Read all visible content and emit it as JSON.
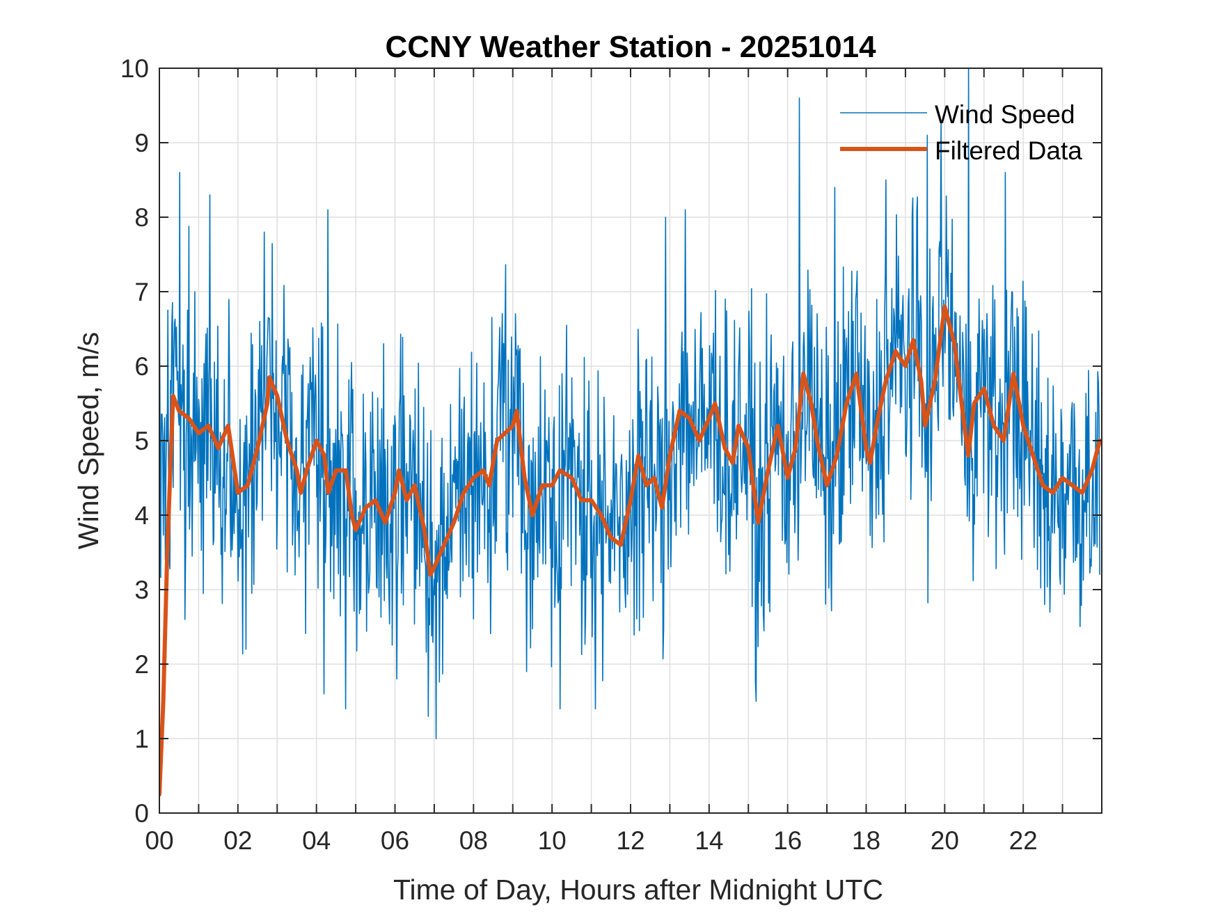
{
  "chart_data": {
    "type": "line",
    "title": "CCNY Weather Station - 20251014",
    "xlabel": "Time of Day, Hours after Midnight UTC",
    "ylabel": "Wind Speed, m/s",
    "xlim": [
      0,
      24
    ],
    "ylim": [
      0,
      10
    ],
    "grid": true,
    "legend_position": "top-right",
    "x_ticks": [
      0,
      2,
      4,
      6,
      8,
      10,
      12,
      14,
      16,
      18,
      20,
      22
    ],
    "x_tick_labels": [
      "00",
      "02",
      "04",
      "06",
      "08",
      "10",
      "12",
      "14",
      "16",
      "18",
      "20",
      "22"
    ],
    "x_minor_grid_step_hours": 1,
    "y_ticks": [
      0,
      1,
      2,
      3,
      4,
      5,
      6,
      7,
      8,
      9,
      10
    ],
    "y_tick_labels": [
      "0",
      "1",
      "2",
      "3",
      "4",
      "5",
      "6",
      "7",
      "8",
      "9",
      "10"
    ],
    "series": [
      {
        "name": "Wind Speed",
        "color": "#0072BD",
        "note": "high-frequency 1-minute samples; values approximated as filtered value plus noise with notable spikes listed",
        "sample_interval_hours": 0.0167,
        "noise_amplitude": 1.6,
        "notable_points": [
          {
            "x": 0.0,
            "y": 7.2
          },
          {
            "x": 0.52,
            "y": 8.6
          },
          {
            "x": 0.65,
            "y": 2.6
          },
          {
            "x": 1.28,
            "y": 8.3
          },
          {
            "x": 2.2,
            "y": 2.2
          },
          {
            "x": 2.68,
            "y": 7.8
          },
          {
            "x": 4.3,
            "y": 8.1
          },
          {
            "x": 4.2,
            "y": 1.6
          },
          {
            "x": 4.75,
            "y": 1.4
          },
          {
            "x": 6.05,
            "y": 1.8
          },
          {
            "x": 6.85,
            "y": 1.3
          },
          {
            "x": 7.05,
            "y": 1.0
          },
          {
            "x": 9.35,
            "y": 1.9
          },
          {
            "x": 10.2,
            "y": 1.4
          },
          {
            "x": 11.1,
            "y": 1.4
          },
          {
            "x": 12.9,
            "y": 8.0
          },
          {
            "x": 13.4,
            "y": 8.1
          },
          {
            "x": 15.2,
            "y": 1.5
          },
          {
            "x": 16.3,
            "y": 9.6
          },
          {
            "x": 17.2,
            "y": 8.4
          },
          {
            "x": 18.5,
            "y": 8.5
          },
          {
            "x": 19.55,
            "y": 9.1
          },
          {
            "x": 19.9,
            "y": 9.3
          },
          {
            "x": 20.6,
            "y": 10.0
          },
          {
            "x": 21.55,
            "y": 8.6
          },
          {
            "x": 22.55,
            "y": 2.8
          },
          {
            "x": 23.95,
            "y": 3.2
          }
        ]
      },
      {
        "name": "Filtered Data",
        "color": "#D95319",
        "x": [
          0,
          0.1,
          0.2,
          0.35,
          0.5,
          0.75,
          1,
          1.25,
          1.5,
          1.75,
          2,
          2.25,
          2.5,
          2.75,
          2.8,
          3,
          3.25,
          3.5,
          3.6,
          3.75,
          4,
          4.2,
          4.3,
          4.5,
          4.75,
          4.9,
          5,
          5.25,
          5.5,
          5.75,
          6,
          6.1,
          6.3,
          6.5,
          6.75,
          6.9,
          7,
          7.25,
          7.5,
          7.75,
          8,
          8.25,
          8.4,
          8.6,
          8.8,
          9,
          9.1,
          9.3,
          9.5,
          9.75,
          10,
          10.2,
          10.5,
          10.75,
          11,
          11.25,
          11.5,
          11.75,
          12,
          12.2,
          12.4,
          12.6,
          12.8,
          13,
          13.25,
          13.5,
          13.75,
          14,
          14.15,
          14.4,
          14.6,
          14.75,
          15,
          15.25,
          15.5,
          15.75,
          16,
          16.2,
          16.4,
          16.6,
          16.75,
          17,
          17.25,
          17.5,
          17.75,
          18,
          18.1,
          18.3,
          18.5,
          18.75,
          19,
          19.2,
          19.4,
          19.5,
          19.75,
          20,
          20.25,
          20.5,
          20.6,
          20.75,
          21,
          21.25,
          21.5,
          21.75,
          22,
          22.25,
          22.5,
          22.75,
          23,
          23.25,
          23.5,
          23.75,
          23.95
        ],
        "y": [
          0.25,
          1.5,
          3.5,
          5.6,
          5.4,
          5.3,
          5.1,
          5.2,
          4.9,
          5.2,
          4.3,
          4.4,
          4.9,
          5.5,
          5.85,
          5.6,
          5.0,
          4.6,
          4.3,
          4.6,
          5.0,
          4.8,
          4.3,
          4.6,
          4.6,
          4.0,
          3.8,
          4.1,
          4.2,
          3.9,
          4.3,
          4.6,
          4.2,
          4.4,
          3.8,
          3.2,
          3.3,
          3.6,
          3.9,
          4.3,
          4.5,
          4.6,
          4.4,
          5.0,
          5.1,
          5.2,
          5.4,
          4.5,
          4.0,
          4.4,
          4.4,
          4.6,
          4.5,
          4.2,
          4.2,
          4.0,
          3.7,
          3.6,
          4.2,
          4.8,
          4.4,
          4.5,
          4.1,
          4.8,
          5.4,
          5.3,
          5.0,
          5.3,
          5.5,
          4.9,
          4.7,
          5.2,
          4.9,
          3.9,
          4.6,
          5.2,
          4.5,
          4.9,
          5.9,
          5.5,
          5.0,
          4.4,
          4.8,
          5.5,
          5.9,
          4.9,
          4.7,
          5.3,
          5.8,
          6.2,
          6.0,
          6.35,
          5.8,
          5.2,
          5.8,
          6.8,
          6.3,
          5.2,
          4.8,
          5.5,
          5.7,
          5.2,
          5.0,
          5.9,
          5.2,
          4.8,
          4.4,
          4.3,
          4.5,
          4.4,
          4.3,
          4.6,
          5.0
        ]
      }
    ]
  }
}
